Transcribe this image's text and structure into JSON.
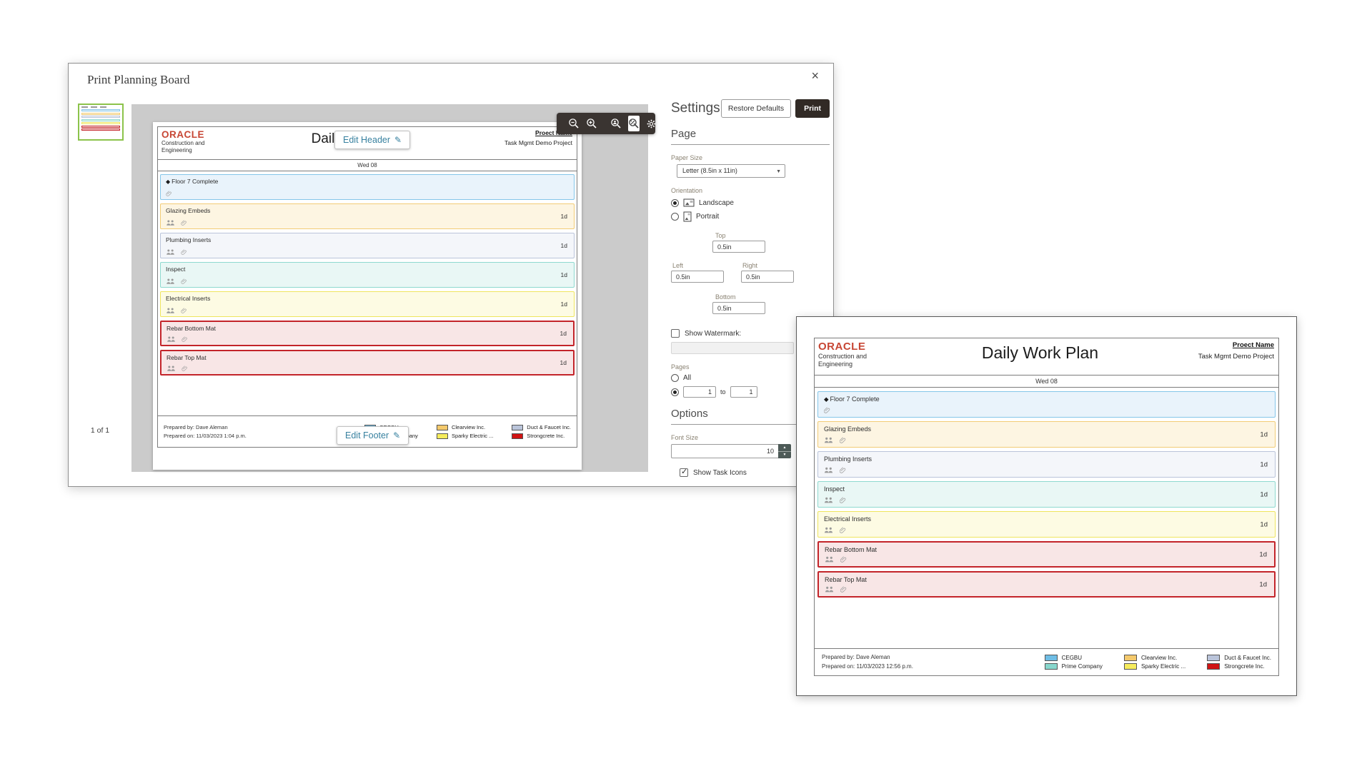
{
  "glyphs": {
    "close": "×",
    "pencil": "✎",
    "milestone": "◆",
    "chevron_down": "▼",
    "stepper_up": "▲",
    "stepper_down": "▼",
    "check": "✓"
  },
  "dialog": {
    "title": "Print Planning Board",
    "pager": "1 of 1",
    "edit_header": "Edit Header",
    "edit_footer": "Edit Footer",
    "toolbar_icons": [
      "zoom-out",
      "zoom-in",
      "actual-size",
      "fit-to-window",
      "print-settings"
    ],
    "toolbar_active": "fit-to-window"
  },
  "settings": {
    "title": "Settings",
    "restore_defaults": "Restore Defaults",
    "print": "Print",
    "page_section": "Page",
    "options_section": "Options",
    "paper_size_label": "Paper Size",
    "paper_size_value": "Letter (8.5in x 11in)",
    "orientation_label": "Orientation",
    "landscape": "Landscape",
    "portrait": "Portrait",
    "margin_top_label": "Top",
    "margin_left_label": "Left",
    "margin_right_label": "Right",
    "margin_bottom_label": "Bottom",
    "margin_top": "0.5in",
    "margin_left": "0.5in",
    "margin_right": "0.5in",
    "margin_bottom": "0.5in",
    "show_watermark": "Show Watermark:",
    "watermark_value": "",
    "pages_label": "Pages",
    "pages_all": "All",
    "page_from": "1",
    "range_to_label": "to",
    "page_to": "1",
    "font_size_label": "Font Size",
    "font_size_value": "10",
    "show_task_icons": "Show Task Icons"
  },
  "document": {
    "brand": "ORACLE",
    "brand_sub1": "Construction and",
    "brand_sub2": "Engineering",
    "title": "Daily Work Plan",
    "project_label": "Proect Name",
    "project_name": "Task Mgmt Demo Project",
    "date": "Wed 08",
    "tasks": [
      {
        "name": "Floor 7 Complete",
        "milestone": true,
        "duration": "",
        "bg": "#e9f3fb",
        "border": "#85c6e9",
        "border_width": 1,
        "icons": [
          "attachment"
        ]
      },
      {
        "name": "Glazing Embeds",
        "milestone": false,
        "duration": "1d",
        "bg": "#fdf5e2",
        "border": "#f2cc76",
        "border_width": 1,
        "icons": [
          "crew",
          "attachment"
        ]
      },
      {
        "name": "Plumbing Inserts",
        "milestone": false,
        "duration": "1d",
        "bg": "#f4f6fa",
        "border": "#bac4da",
        "border_width": 1,
        "icons": [
          "crew",
          "attachment"
        ]
      },
      {
        "name": "Inspect",
        "milestone": false,
        "duration": "1d",
        "bg": "#e9f7f5",
        "border": "#8ed9cf",
        "border_width": 1,
        "icons": [
          "crew",
          "attachment"
        ]
      },
      {
        "name": "Electrical Inserts",
        "milestone": false,
        "duration": "1d",
        "bg": "#fdfbe3",
        "border": "#efe55e",
        "border_width": 1,
        "icons": [
          "crew",
          "attachment"
        ]
      },
      {
        "name": "Rebar Bottom Mat",
        "milestone": false,
        "duration": "1d",
        "bg": "#f8e6e6",
        "border": "#c3242a",
        "border_width": 2,
        "icons": [
          "crew",
          "attachment"
        ]
      },
      {
        "name": "Rebar Top Mat",
        "milestone": false,
        "duration": "1d",
        "bg": "#f8e6e6",
        "border": "#c3242a",
        "border_width": 2,
        "icons": [
          "crew",
          "attachment"
        ]
      }
    ],
    "prepared_by": "Prepared by: Dave Aleman",
    "preview_prepared_on": "Prepared on: 11/03/2023 1:04 p.m.",
    "window_prepared_on": "Prepared on: 11/03/2023 12:56 p.m.",
    "legend": [
      {
        "label": "CEGBU",
        "color": "#6fbde5"
      },
      {
        "label": "Prime Company",
        "color": "#88d7cd"
      },
      {
        "label": "Clearview Inc.",
        "color": "#f4c96c"
      },
      {
        "label": "Sparky Electric ...",
        "color": "#f6ec5d"
      },
      {
        "label": "Duct & Faucet Inc.",
        "color": "#bac4da"
      },
      {
        "label": "Strongcrete Inc.",
        "color": "#d01414"
      }
    ]
  }
}
